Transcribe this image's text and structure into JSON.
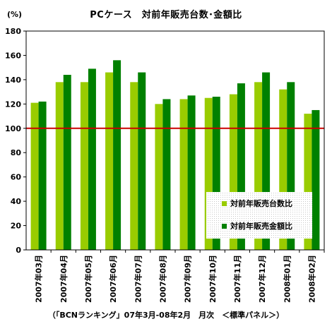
{
  "chart_data": {
    "type": "bar",
    "title": "PCケース　対前年販売台数･金額比",
    "unit_label": "(%)",
    "categories": [
      "2007年03月",
      "2007年04月",
      "2007年05月",
      "2007年06月",
      "2007年07月",
      "2007年08月",
      "2007年09月",
      "2007年10月",
      "2007年11月",
      "2007年12月",
      "2008年01月",
      "2008年02月"
    ],
    "series": [
      {
        "name": "対前年販売台数比",
        "color": "#99cc00",
        "values": [
          121,
          138,
          138,
          146,
          138,
          120,
          124,
          125,
          128,
          138,
          132,
          112
        ]
      },
      {
        "name": "対前年販売金額比",
        "color": "#008000",
        "values": [
          122,
          144,
          149,
          156,
          146,
          124,
          127,
          126,
          137,
          146,
          138,
          115
        ]
      }
    ],
    "ylim": [
      0,
      180
    ],
    "yticks": [
      0,
      20,
      40,
      60,
      80,
      100,
      120,
      140,
      160,
      180
    ],
    "reference_line": {
      "value": 100,
      "color": "#cc0000"
    },
    "grid": false,
    "legend_position": "lower-right",
    "source_note": "（「BCNランキング」07年3月-08年2月　月次　＜標準パネル＞）"
  }
}
